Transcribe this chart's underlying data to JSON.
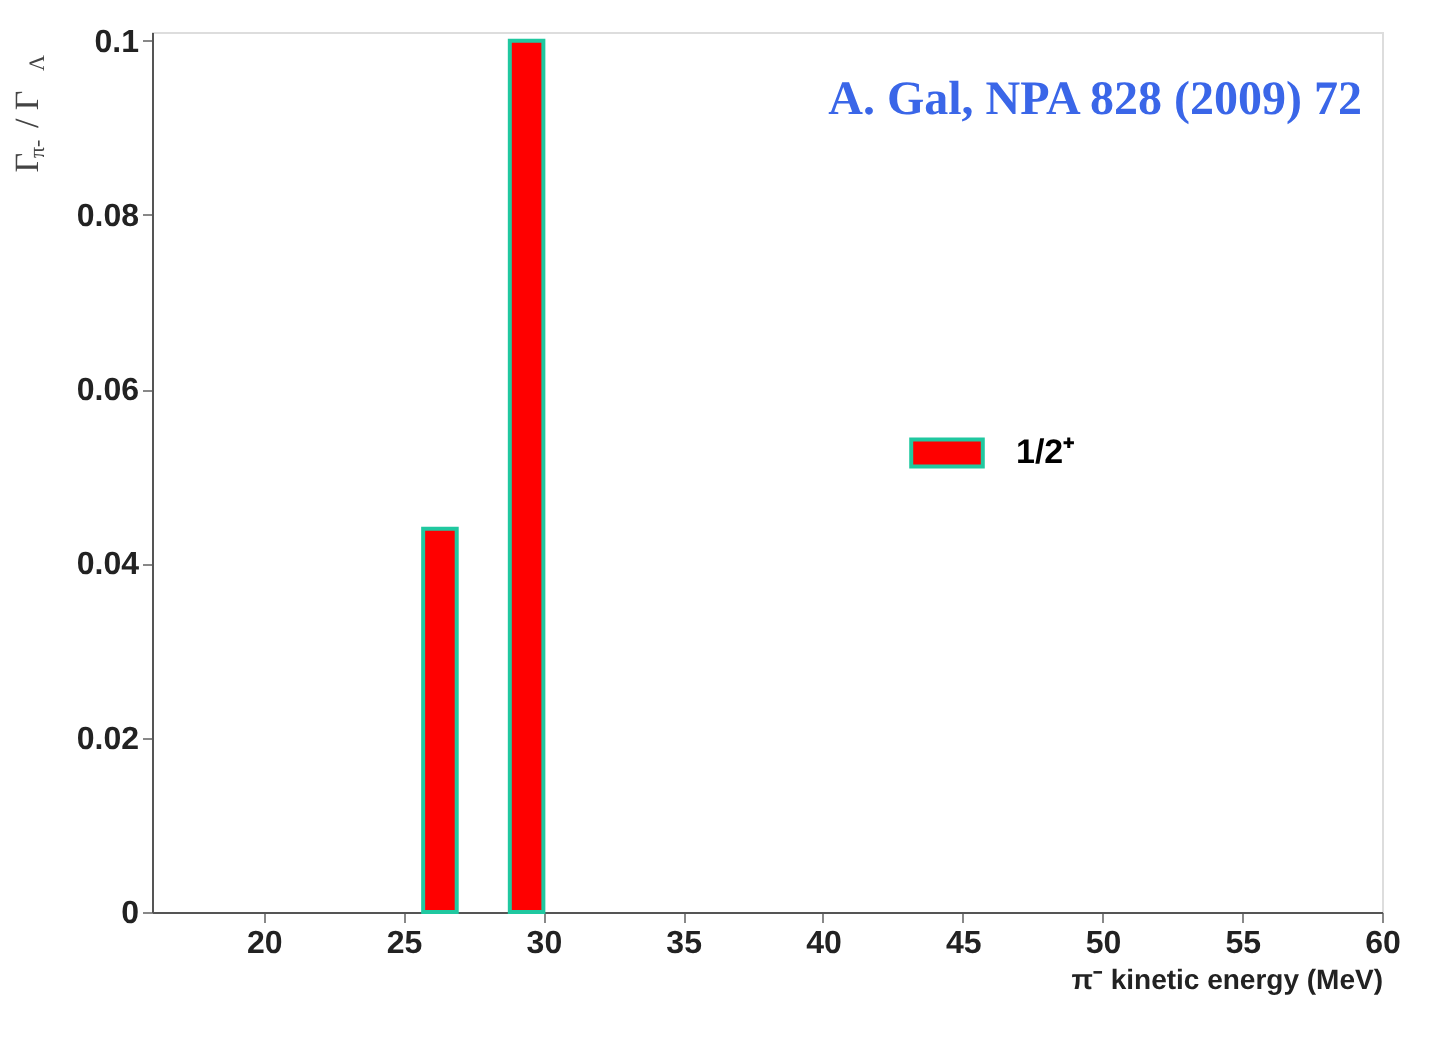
{
  "chart_data": {
    "type": "histogram",
    "annotations": [
      "A. Gal, NPA 828 (2009) 72"
    ],
    "xlabel": "π⁻ kinetic energy (MeV)",
    "ylabel": "Γ$_{π-}$ / Γ$_{Λ}$",
    "bins": [
      25.7,
      26.9,
      28.8,
      30.0
    ],
    "series": [
      {
        "name": "1/2⁺",
        "color": "#ff0000",
        "values": [
          0.044,
          0,
          0.1
        ]
      }
    ],
    "xlim": [
      16,
      60
    ],
    "xticks": [
      20,
      25,
      30,
      35,
      40,
      45,
      50,
      55,
      60
    ],
    "ylim": [
      0,
      0.101
    ],
    "yticks": [
      0,
      0.02,
      0.04,
      0.06,
      0.08,
      0.1
    ],
    "grid": false,
    "legend": "right"
  }
}
